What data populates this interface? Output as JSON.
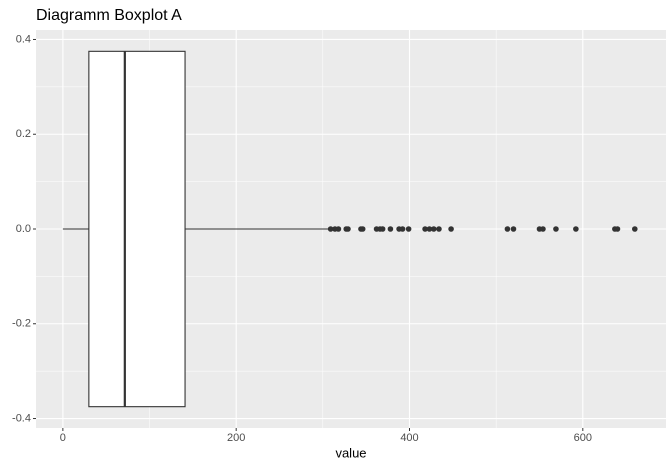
{
  "chart_data": {
    "type": "boxplot",
    "title": "Diagramm Boxplot A",
    "xlabel": "value",
    "min": 0,
    "q1": 30,
    "median": 71.5,
    "q3": 141,
    "max": 306,
    "outliers": [
      309,
      314,
      318,
      327,
      329,
      344,
      346,
      362,
      366,
      369,
      378,
      388,
      392,
      399,
      418,
      423,
      428,
      434,
      448,
      513,
      520,
      550,
      554,
      569,
      592,
      637,
      640,
      660
    ],
    "box_width": 0.75,
    "xlim": [
      -31,
      696
    ],
    "xticks": [
      0,
      200,
      400,
      600
    ],
    "ylim": [
      -0.42,
      0.42
    ],
    "yticks": [
      -0.4,
      -0.2,
      {
        "value": 0,
        "label": "0.0"
      },
      0.2,
      0.4
    ],
    "grid": true,
    "color": "#333333",
    "fill": "#ffffff"
  }
}
